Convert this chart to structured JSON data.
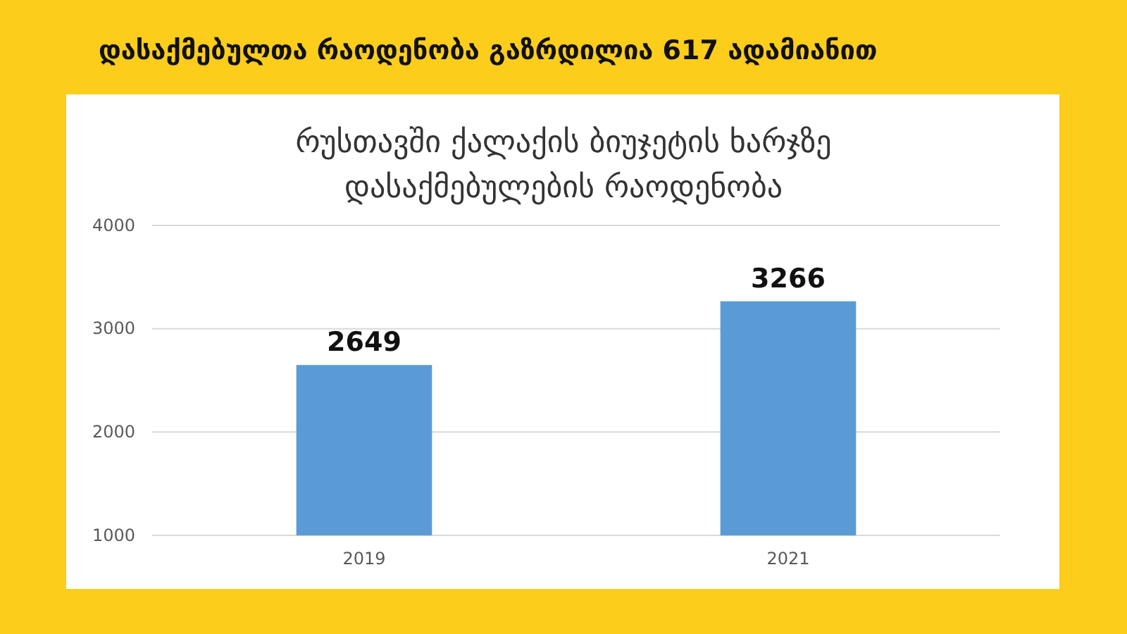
{
  "chart_data": {
    "type": "bar",
    "title": "დასაქმებულთა რაოდენობა გაზრდილია 617 ადამიანით",
    "subtitle": "რუსთავში ქალაქის ბიუჯეტის ხარჯზე\nდასაქმებულების რაოდენობა",
    "categories": [
      "2019",
      "2021"
    ],
    "values": [
      2649,
      3266
    ],
    "color": "#5b9bd5",
    "ylim": [
      1000,
      4000
    ],
    "yticks": [
      1000,
      2000,
      3000,
      4000
    ],
    "grid": "y",
    "data_labels": true
  }
}
